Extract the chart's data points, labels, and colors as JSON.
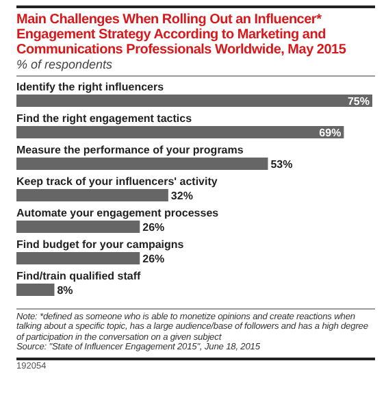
{
  "chart_data": {
    "type": "bar",
    "orientation": "horizontal",
    "title": "Main Challenges When Rolling Out an Influencer* Engagement Strategy According to Marketing and Communications Professionals Worldwide, May 2015",
    "subtitle": "% of respondents",
    "categories": [
      "Identify the right influencers",
      "Find the right engagement tactics",
      "Measure the performance of your programs",
      "Keep track of your influencers' activity",
      "Automate your engagement processes",
      "Find budget for your campaigns",
      "Find/train qualified staff"
    ],
    "values": [
      75,
      69,
      53,
      32,
      26,
      26,
      8
    ],
    "value_labels": [
      "75%",
      "69%",
      "53%",
      "32%",
      "26%",
      "26%",
      "8%"
    ],
    "color": "#666666",
    "annotations": [
      "Note: *defined as someone who is able to monetize opinions and create reactions when talking about a specific topic, has a large audience/base of followers and has a high degree of participation in the conversation on a given subject",
      "Source: \"State of Influencer Engagement 2015\", June 18, 2015",
      "192054"
    ]
  }
}
